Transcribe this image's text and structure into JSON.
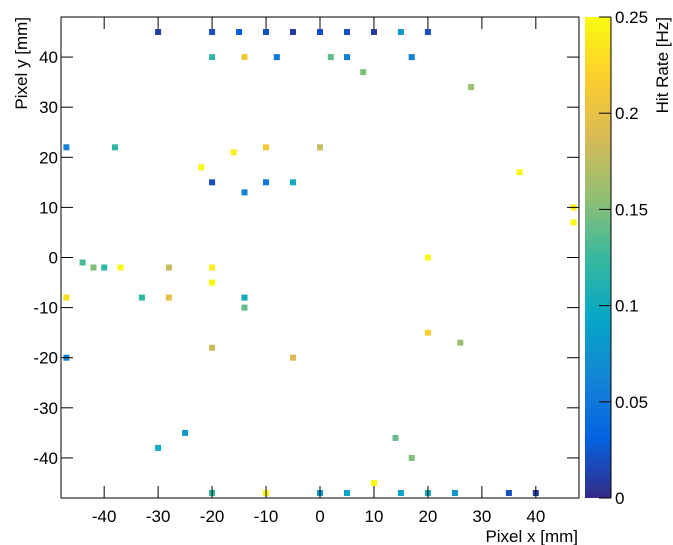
{
  "chart_data": {
    "type": "heatmap",
    "title": "",
    "xlabel": "Pixel x [mm]",
    "ylabel": "Pixel y [mm]",
    "zlabel": "Hit Rate [Hz]",
    "xlim": [
      -48,
      48
    ],
    "ylim": [
      -48,
      48
    ],
    "zlim": [
      0,
      0.25
    ],
    "x_ticks": [
      -40,
      -30,
      -20,
      -10,
      0,
      10,
      20,
      30,
      40
    ],
    "y_ticks": [
      -40,
      -30,
      -20,
      -10,
      0,
      10,
      20,
      30,
      40
    ],
    "z_ticks": [
      0,
      0.05,
      0.1,
      0.15,
      0.2,
      0.25
    ],
    "z_tick_labels": [
      "0",
      "0.05",
      "0.1",
      "0.15",
      "0.2",
      "0.25"
    ],
    "colormap": "parula",
    "colormap_stops": [
      "#352a87",
      "#0363e1",
      "#1485d4",
      "#06a7c6",
      "#38b99e",
      "#92bf73",
      "#d9ba56",
      "#fcce2e",
      "#f9fb0e"
    ],
    "cells": [
      [
        -30,
        45,
        0.01
      ],
      [
        -20,
        45,
        0.02
      ],
      [
        -15,
        45,
        0.03
      ],
      [
        -10,
        45,
        0.02
      ],
      [
        -5,
        45,
        0.01
      ],
      [
        0,
        45,
        0.02
      ],
      [
        5,
        45,
        0.02
      ],
      [
        10,
        45,
        0.01
      ],
      [
        15,
        45,
        0.08
      ],
      [
        20,
        45,
        0.02
      ],
      [
        -20,
        40,
        0.12
      ],
      [
        -14,
        40,
        0.21
      ],
      [
        -8,
        40,
        0.05
      ],
      [
        2,
        40,
        0.14
      ],
      [
        5,
        40,
        0.06
      ],
      [
        17,
        40,
        0.06
      ],
      [
        8,
        37,
        0.15
      ],
      [
        28,
        34,
        0.16
      ],
      [
        -10,
        22,
        0.21
      ],
      [
        -16,
        21,
        0.24
      ],
      [
        -22,
        18,
        0.25
      ],
      [
        0,
        22,
        0.18
      ],
      [
        -38,
        22,
        0.12
      ],
      [
        -47,
        22,
        0.06
      ],
      [
        37,
        17,
        0.25
      ],
      [
        47,
        10,
        0.24
      ],
      [
        47,
        7,
        0.25
      ],
      [
        -10,
        15,
        0.05
      ],
      [
        -5,
        15,
        0.1
      ],
      [
        -14,
        13,
        0.06
      ],
      [
        -20,
        15,
        0.02
      ],
      [
        -40,
        -2,
        0.12
      ],
      [
        -42,
        -2,
        0.15
      ],
      [
        -37,
        -2,
        0.25
      ],
      [
        -44,
        -1,
        0.13
      ],
      [
        -28,
        -2,
        0.18
      ],
      [
        -20,
        -2,
        0.24
      ],
      [
        -20,
        -5,
        0.25
      ],
      [
        20,
        0,
        0.25
      ],
      [
        -47,
        -8,
        0.23
      ],
      [
        -28,
        -8,
        0.2
      ],
      [
        -33,
        -8,
        0.12
      ],
      [
        -14,
        -8,
        0.1
      ],
      [
        -14,
        -10,
        0.14
      ],
      [
        20,
        -15,
        0.22
      ],
      [
        26,
        -17,
        0.16
      ],
      [
        -20,
        -18,
        0.18
      ],
      [
        -5,
        -20,
        0.19
      ],
      [
        -47,
        -20,
        0.06
      ],
      [
        14,
        -36,
        0.14
      ],
      [
        17,
        -40,
        0.15
      ],
      [
        10,
        -45,
        0.25
      ],
      [
        -10,
        -47,
        0.25
      ],
      [
        -20,
        -47,
        0.12
      ],
      [
        0,
        -47,
        0.08
      ],
      [
        5,
        -47,
        0.09
      ],
      [
        15,
        -47,
        0.09
      ],
      [
        20,
        -47,
        0.1
      ],
      [
        25,
        -47,
        0.08
      ],
      [
        -30,
        -38,
        0.1
      ],
      [
        -25,
        -35,
        0.08
      ],
      [
        35,
        -47,
        0.02
      ],
      [
        40,
        -47,
        0.01
      ]
    ]
  }
}
